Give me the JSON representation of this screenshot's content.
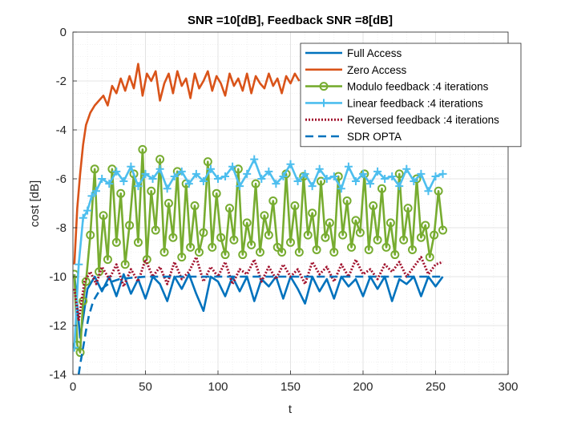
{
  "chart_data": {
    "type": "line",
    "title": "SNR =10[dB], Feedback SNR =8[dB]",
    "xlabel": "t",
    "ylabel": "cost [dB]",
    "xlim": [
      0,
      300
    ],
    "ylim": [
      -14,
      0
    ],
    "xticks": [
      0,
      50,
      100,
      150,
      200,
      250,
      300
    ],
    "yticks": [
      0,
      -2,
      -4,
      -6,
      -8,
      -10,
      -12,
      -14
    ],
    "grid": true,
    "minor_grid": true,
    "legend_position": "top-right",
    "series": [
      {
        "name": "Full Access",
        "color": "#0072BD",
        "style": "solid",
        "marker": "none",
        "x": [
          1,
          5,
          10,
          15,
          20,
          25,
          30,
          35,
          40,
          45,
          50,
          55,
          60,
          65,
          70,
          75,
          80,
          85,
          90,
          95,
          100,
          105,
          110,
          115,
          120,
          125,
          130,
          135,
          140,
          145,
          150,
          155,
          160,
          165,
          170,
          175,
          180,
          185,
          190,
          195,
          200,
          205,
          210,
          215,
          220,
          225,
          230,
          235,
          240,
          245,
          250,
          255
        ],
        "values": [
          -9.9,
          -12.5,
          -10.5,
          -10.0,
          -10.6,
          -10.0,
          -10.8,
          -9.9,
          -10.7,
          -10.1,
          -10.9,
          -10.0,
          -10.3,
          -11.0,
          -10.0,
          -10.5,
          -9.9,
          -10.7,
          -11.4,
          -10.0,
          -10.2,
          -10.8,
          -10.0,
          -10.6,
          -10.0,
          -11.0,
          -10.1,
          -10.4,
          -10.0,
          -10.9,
          -10.0,
          -10.5,
          -11.1,
          -10.0,
          -10.6,
          -10.1,
          -10.9,
          -10.0,
          -10.4,
          -10.1,
          -10.8,
          -10.0,
          -10.5,
          -10.0,
          -11.0,
          -10.1,
          -10.3,
          -10.0,
          -10.8,
          -10.0,
          -10.4,
          -10.0
        ]
      },
      {
        "name": "Zero Access",
        "color": "#D95319",
        "style": "solid",
        "marker": "none",
        "x": [
          1,
          3,
          5,
          7,
          9,
          12,
          15,
          18,
          21,
          24,
          27,
          30,
          33,
          36,
          39,
          42,
          45,
          48,
          51,
          54,
          57,
          60,
          63,
          66,
          69,
          72,
          75,
          78,
          81,
          84,
          87,
          90,
          93,
          96,
          99,
          102,
          105,
          108,
          111,
          114,
          117,
          120,
          123,
          126,
          129,
          132,
          135,
          138,
          141,
          144,
          147,
          150,
          153,
          156
        ],
        "values": [
          -9.5,
          -7.2,
          -5.8,
          -4.6,
          -3.8,
          -3.3,
          -3.0,
          -2.8,
          -2.6,
          -3.0,
          -2.2,
          -2.5,
          -1.9,
          -2.4,
          -1.8,
          -2.3,
          -1.3,
          -2.6,
          -1.7,
          -2.0,
          -1.6,
          -2.8,
          -2.1,
          -1.7,
          -2.5,
          -1.6,
          -2.2,
          -1.9,
          -2.7,
          -1.7,
          -2.3,
          -2.0,
          -1.6,
          -2.4,
          -1.8,
          -2.1,
          -2.6,
          -1.7,
          -2.2,
          -1.9,
          -2.4,
          -1.7,
          -2.5,
          -1.8,
          -2.1,
          -2.3,
          -1.7,
          -2.2,
          -1.9,
          -2.5,
          -1.8,
          -2.1,
          -1.7,
          -2.0
        ]
      },
      {
        "name": "Modulo feedback :4 iterations",
        "color": "#77AC30",
        "style": "solid",
        "marker": "circle",
        "x": [
          1,
          3,
          5,
          7,
          9,
          12,
          15,
          18,
          21,
          24,
          27,
          30,
          33,
          36,
          39,
          42,
          45,
          48,
          51,
          54,
          57,
          60,
          63,
          66,
          69,
          72,
          75,
          78,
          81,
          84,
          87,
          90,
          93,
          96,
          99,
          102,
          105,
          108,
          111,
          114,
          117,
          120,
          123,
          126,
          129,
          132,
          135,
          138,
          141,
          144,
          147,
          150,
          153,
          156,
          159,
          162,
          165,
          168,
          171,
          174,
          177,
          180,
          183,
          186,
          189,
          192,
          195,
          198,
          201,
          204,
          207,
          210,
          213,
          216,
          219,
          222,
          225,
          228,
          231,
          234,
          237,
          240,
          243,
          246,
          249,
          252,
          255
        ],
        "values": [
          -9.9,
          -12.8,
          -13.1,
          -11.0,
          -10.2,
          -8.3,
          -5.6,
          -9.8,
          -7.5,
          -9.3,
          -5.6,
          -8.6,
          -6.6,
          -9.5,
          -7.9,
          -5.8,
          -8.6,
          -4.8,
          -9.3,
          -6.5,
          -8.1,
          -5.2,
          -9.0,
          -7.0,
          -8.4,
          -5.7,
          -9.2,
          -6.2,
          -8.8,
          -7.1,
          -9.0,
          -8.2,
          -5.3,
          -8.8,
          -6.6,
          -8.4,
          -9.1,
          -7.2,
          -8.5,
          -5.6,
          -9.1,
          -7.8,
          -8.7,
          -6.2,
          -9.0,
          -7.5,
          -8.3,
          -6.9,
          -8.8,
          -9.0,
          -5.8,
          -8.6,
          -7.1,
          -9.0,
          -5.9,
          -8.3,
          -7.4,
          -8.9,
          -6.1,
          -8.4,
          -7.8,
          -9.0,
          -5.9,
          -8.3,
          -6.9,
          -8.8,
          -7.7,
          -8.2,
          -5.8,
          -8.9,
          -7.1,
          -8.5,
          -6.4,
          -8.8,
          -7.8,
          -9.1,
          -5.8,
          -8.5,
          -7.2,
          -8.9,
          -6.0,
          -8.4,
          -7.9,
          -9.2,
          -8.3,
          -6.5,
          -8.1
        ]
      },
      {
        "name": "Linear feedback :4 iterations",
        "color": "#4DBEEE",
        "style": "solid",
        "marker": "plus",
        "x": [
          1,
          4,
          7,
          10,
          13,
          16,
          20,
          25,
          30,
          35,
          40,
          45,
          50,
          55,
          60,
          65,
          70,
          75,
          80,
          85,
          90,
          95,
          100,
          105,
          110,
          115,
          120,
          125,
          130,
          135,
          140,
          145,
          150,
          155,
          160,
          165,
          170,
          175,
          180,
          185,
          190,
          195,
          200,
          205,
          210,
          215,
          220,
          225,
          230,
          235,
          240,
          245,
          250,
          255
        ],
        "values": [
          -12.9,
          -9.5,
          -7.6,
          -7.3,
          -6.7,
          -6.5,
          -6.0,
          -6.2,
          -5.7,
          -6.1,
          -5.5,
          -6.3,
          -5.8,
          -6.0,
          -5.6,
          -6.4,
          -5.9,
          -5.7,
          -6.2,
          -5.8,
          -6.1,
          -5.6,
          -6.0,
          -5.9,
          -5.5,
          -6.3,
          -5.8,
          -5.2,
          -6.0,
          -5.7,
          -6.2,
          -5.9,
          -5.4,
          -6.1,
          -5.8,
          -6.3,
          -5.6,
          -6.0,
          -5.9,
          -6.4,
          -5.5,
          -6.1,
          -5.8,
          -6.2,
          -5.7,
          -6.0,
          -5.9,
          -6.3,
          -5.6,
          -6.1,
          -5.8,
          -6.5,
          -5.9,
          -5.8
        ]
      },
      {
        "name": "Reversed feedback :4 iterations",
        "color": "#A2142F",
        "style": "dotted",
        "marker": "none",
        "x": [
          1,
          4,
          8,
          12,
          16,
          20,
          25,
          30,
          35,
          40,
          45,
          50,
          55,
          60,
          65,
          70,
          75,
          80,
          85,
          90,
          95,
          100,
          105,
          110,
          115,
          120,
          125,
          130,
          135,
          140,
          145,
          150,
          155,
          160,
          165,
          170,
          175,
          180,
          185,
          190,
          195,
          200,
          205,
          210,
          215,
          220,
          225,
          230,
          235,
          240,
          245,
          250,
          255
        ],
        "values": [
          -10.5,
          -11.8,
          -10.2,
          -9.8,
          -10.3,
          -9.6,
          -10.1,
          -9.5,
          -10.4,
          -9.7,
          -10.2,
          -9.3,
          -10.0,
          -9.6,
          -10.3,
          -9.4,
          -10.1,
          -9.8,
          -9.2,
          -10.2,
          -9.6,
          -10.0,
          -9.4,
          -10.3,
          -9.7,
          -9.9,
          -9.3,
          -10.2,
          -9.6,
          -10.1,
          -9.5,
          -10.0,
          -9.7,
          -10.3,
          -9.4,
          -9.9,
          -9.6,
          -10.2,
          -9.5,
          -10.0,
          -9.3,
          -9.9,
          -9.7,
          -10.1,
          -9.5,
          -9.8,
          -9.4,
          -10.0,
          -9.6,
          -9.2,
          -9.9,
          -9.5,
          -9.4
        ]
      },
      {
        "name": "SDR OPTA",
        "color": "#0072BD",
        "style": "dashed",
        "marker": "none",
        "x": [
          4,
          5,
          7,
          9,
          11,
          14,
          18,
          22,
          27,
          32,
          40,
          50,
          60,
          80,
          100,
          130,
          160,
          190,
          220,
          255
        ],
        "values": [
          -14.0,
          -13.6,
          -12.9,
          -12.2,
          -11.6,
          -11.0,
          -10.6,
          -10.4,
          -10.2,
          -10.1,
          -10.05,
          -10.0,
          -10.0,
          -10.0,
          -10.0,
          -10.0,
          -10.0,
          -10.0,
          -10.0,
          -10.0
        ]
      }
    ]
  }
}
